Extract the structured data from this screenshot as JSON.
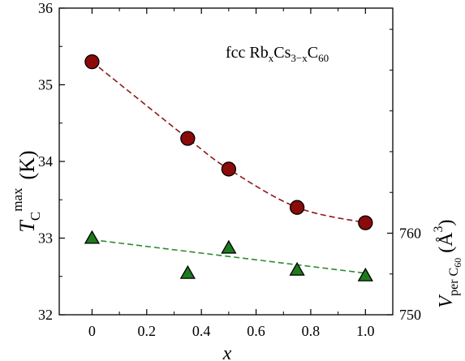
{
  "chart_data": {
    "type": "scatter",
    "annotation": {
      "prefix": "fcc Rb",
      "sub1": "x",
      "mid": "Cs",
      "sub2": "3−x",
      "mid2": "C",
      "sub3": "60"
    },
    "xlabel": "x",
    "ylabel": {
      "main": "T",
      "sub": "C",
      "sup": "max",
      "unit": "(K)"
    },
    "y2label": {
      "main": "V",
      "sub": "per C",
      "sub2": "60",
      "unit_open": "(",
      "unit": "Å",
      "unit_sup": "3",
      "unit_close": ")"
    },
    "xlim": [
      -0.12,
      1.1
    ],
    "ylim": [
      32,
      36
    ],
    "y2lim": [
      750,
      787.6
    ],
    "x_ticks": [
      0,
      0.2,
      0.4,
      0.6,
      0.8,
      1.0
    ],
    "x_tick_labels": [
      "0",
      "0.2",
      "0.4",
      "0.6",
      "0.8",
      "1.0"
    ],
    "y_ticks": [
      32,
      33,
      34,
      35,
      36
    ],
    "y_tick_labels": [
      "32",
      "33",
      "34",
      "35",
      "36"
    ],
    "y2_ticks": [
      750,
      760
    ],
    "y2_tick_labels": [
      "750",
      "760"
    ],
    "series": [
      {
        "axis": "left",
        "marker": "circle",
        "color": "#8b0a0a",
        "line_color": "#8b1a1a",
        "x": [
          0,
          0.35,
          0.5,
          0.75,
          1.0
        ],
        "y": [
          35.3,
          34.3,
          33.9,
          33.4,
          33.2
        ]
      },
      {
        "axis": "right",
        "marker": "triangle",
        "color": "#1f7a1f",
        "line_color": "#2e8b2e",
        "x": [
          0,
          0.35,
          0.5,
          0.75,
          1.0
        ],
        "y": [
          759.4,
          755.1,
          758.2,
          755.5,
          754.8
        ],
        "fit_x": [
          0,
          1.0
        ],
        "fit_y": [
          759.2,
          755.1
        ]
      }
    ],
    "grid": false
  }
}
